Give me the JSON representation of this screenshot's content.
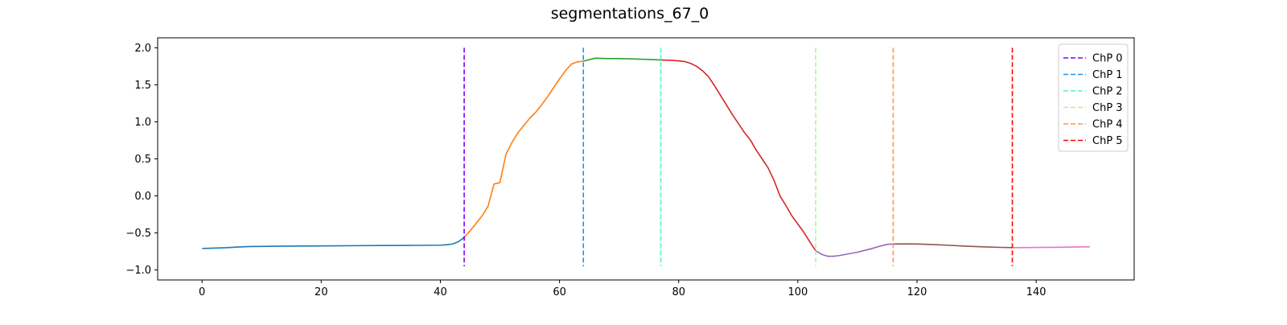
{
  "chart_data": {
    "type": "line",
    "title": "segmentations_67_0",
    "xlabel": "",
    "ylabel": "",
    "xlim": [
      -7.45,
      156.45
    ],
    "ylim": [
      -1.135,
      2.135
    ],
    "x_ticks": [
      0,
      20,
      40,
      60,
      80,
      100,
      120,
      140
    ],
    "y_ticks": [
      -1.0,
      -0.5,
      0.0,
      0.5,
      1.0,
      1.5,
      2.0
    ],
    "grid": false,
    "legend_placement": "top-right",
    "segments": [
      {
        "color": "#1f77b4",
        "points": [
          [
            0,
            -0.71
          ],
          [
            2,
            -0.705
          ],
          [
            4,
            -0.7
          ],
          [
            6,
            -0.69
          ],
          [
            8,
            -0.683
          ],
          [
            10,
            -0.682
          ],
          [
            14,
            -0.678
          ],
          [
            20,
            -0.675
          ],
          [
            26,
            -0.672
          ],
          [
            30,
            -0.67
          ],
          [
            36,
            -0.668
          ],
          [
            40,
            -0.665
          ],
          [
            41,
            -0.66
          ],
          [
            42,
            -0.65
          ],
          [
            43,
            -0.62
          ],
          [
            44,
            -0.56
          ]
        ]
      },
      {
        "color": "#ff7f0e",
        "points": [
          [
            44,
            -0.56
          ],
          [
            45,
            -0.47
          ],
          [
            46,
            -0.37
          ],
          [
            47,
            -0.27
          ],
          [
            48,
            -0.14
          ],
          [
            49,
            0.16
          ],
          [
            50,
            0.18
          ],
          [
            51,
            0.56
          ],
          [
            52,
            0.72
          ],
          [
            53,
            0.85
          ],
          [
            54,
            0.95
          ],
          [
            55,
            1.05
          ],
          [
            56,
            1.13
          ],
          [
            57,
            1.23
          ],
          [
            58,
            1.34
          ],
          [
            59,
            1.46
          ],
          [
            60,
            1.58
          ],
          [
            61,
            1.69
          ],
          [
            62,
            1.78
          ],
          [
            63,
            1.81
          ],
          [
            64,
            1.82
          ]
        ]
      },
      {
        "color": "#2ca02c",
        "points": [
          [
            64,
            1.82
          ],
          [
            66,
            1.86
          ],
          [
            68,
            1.855
          ],
          [
            70,
            1.855
          ],
          [
            72,
            1.85
          ],
          [
            74,
            1.845
          ],
          [
            76,
            1.84
          ],
          [
            77,
            1.835
          ]
        ]
      },
      {
        "color": "#d62728",
        "points": [
          [
            77,
            1.835
          ],
          [
            79,
            1.83
          ],
          [
            81,
            1.815
          ],
          [
            82,
            1.79
          ],
          [
            83,
            1.75
          ],
          [
            84,
            1.69
          ],
          [
            85,
            1.61
          ],
          [
            86,
            1.49
          ],
          [
            87,
            1.36
          ],
          [
            88,
            1.23
          ],
          [
            89,
            1.1
          ],
          [
            90,
            0.98
          ],
          [
            91,
            0.86
          ],
          [
            92,
            0.76
          ],
          [
            93,
            0.62
          ],
          [
            94,
            0.5
          ],
          [
            95,
            0.38
          ],
          [
            96,
            0.21
          ],
          [
            97,
            0.0
          ],
          [
            98,
            -0.13
          ],
          [
            99,
            -0.27
          ],
          [
            100,
            -0.38
          ],
          [
            101,
            -0.49
          ],
          [
            102,
            -0.62
          ],
          [
            103,
            -0.74
          ]
        ]
      },
      {
        "color": "#9467bd",
        "points": [
          [
            103,
            -0.74
          ],
          [
            104,
            -0.79
          ],
          [
            105,
            -0.815
          ],
          [
            106,
            -0.815
          ],
          [
            107,
            -0.805
          ],
          [
            108,
            -0.79
          ],
          [
            110,
            -0.76
          ],
          [
            112,
            -0.72
          ],
          [
            114,
            -0.675
          ],
          [
            115,
            -0.655
          ],
          [
            116,
            -0.65
          ]
        ]
      },
      {
        "color": "#8c564b",
        "points": [
          [
            116,
            -0.65
          ],
          [
            118,
            -0.648
          ],
          [
            120,
            -0.65
          ],
          [
            122,
            -0.655
          ],
          [
            125,
            -0.665
          ],
          [
            128,
            -0.678
          ],
          [
            131,
            -0.688
          ],
          [
            134,
            -0.695
          ],
          [
            136,
            -0.698
          ]
        ]
      },
      {
        "color": "#e377c2",
        "points": [
          [
            136,
            -0.698
          ],
          [
            138,
            -0.698
          ],
          [
            140,
            -0.696
          ],
          [
            143,
            -0.694
          ],
          [
            146,
            -0.69
          ],
          [
            149,
            -0.688
          ]
        ]
      }
    ],
    "changepoints": [
      {
        "name": "ChP 0",
        "x": 44,
        "ymin": -0.95,
        "ymax": 2.0,
        "color": "#8000ff"
      },
      {
        "name": "ChP 1",
        "x": 64,
        "ymin": -0.95,
        "ymax": 2.0,
        "color": "#1996f3"
      },
      {
        "name": "ChP 2",
        "x": 77,
        "ymin": -0.95,
        "ymax": 2.0,
        "color": "#4df3ce"
      },
      {
        "name": "ChP 3",
        "x": 103,
        "ymin": -0.95,
        "ymax": 2.0,
        "color": "#b2f396"
      },
      {
        "name": "ChP 4",
        "x": 116,
        "ymin": -0.95,
        "ymax": 2.0,
        "color": "#ff964f"
      },
      {
        "name": "ChP 5",
        "x": 136,
        "ymin": -0.95,
        "ymax": 2.0,
        "color": "#ff0000"
      }
    ]
  }
}
